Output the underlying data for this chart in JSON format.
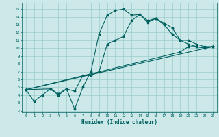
{
  "xlabel": "Humidex (Indice chaleur)",
  "ylabel": "",
  "xlim": [
    -0.5,
    23.5
  ],
  "ylim": [
    1.8,
    15.8
  ],
  "xticks": [
    0,
    1,
    2,
    3,
    4,
    5,
    6,
    7,
    8,
    9,
    10,
    11,
    12,
    13,
    14,
    15,
    16,
    17,
    18,
    19,
    20,
    21,
    22,
    23
  ],
  "yticks": [
    2,
    3,
    4,
    5,
    6,
    7,
    8,
    9,
    10,
    11,
    12,
    13,
    14,
    15
  ],
  "bg_color": "#cce8e8",
  "line_color": "#006060",
  "grid_color": "#99cccc",
  "line1_x": [
    0,
    1,
    2,
    3,
    4,
    5,
    6,
    7,
    8,
    9,
    10,
    11,
    12,
    13,
    14,
    15,
    16,
    17,
    18,
    19,
    20,
    21,
    22,
    23
  ],
  "line1_y": [
    4.7,
    3.2,
    4.0,
    4.8,
    4.2,
    4.8,
    2.2,
    5.0,
    7.0,
    11.8,
    14.2,
    14.8,
    15.0,
    14.2,
    14.3,
    13.5,
    13.8,
    13.2,
    12.6,
    11.0,
    11.0,
    10.5,
    10.2,
    10.2
  ],
  "line2_x": [
    0,
    3,
    4,
    5,
    6,
    7,
    8,
    9,
    10,
    11,
    12,
    13,
    14,
    15,
    16,
    17,
    18,
    19,
    20,
    21,
    22,
    23
  ],
  "line2_y": [
    4.7,
    4.8,
    4.0,
    4.8,
    4.5,
    6.5,
    6.5,
    7.0,
    10.5,
    11.0,
    11.5,
    13.5,
    14.3,
    13.3,
    13.8,
    13.0,
    11.8,
    11.0,
    10.5,
    10.2,
    10.0,
    10.2
  ],
  "line3_x": [
    0,
    19,
    20,
    21,
    22,
    23
  ],
  "line3_y": [
    4.7,
    9.5,
    10.2,
    10.2,
    10.0,
    10.2
  ],
  "line4_x": [
    0,
    23
  ],
  "line4_y": [
    4.7,
    10.2
  ],
  "marker": "*",
  "markersize": 2.5,
  "linewidth": 0.8,
  "tick_fontsize": 4.0,
  "xlabel_fontsize": 5.5
}
